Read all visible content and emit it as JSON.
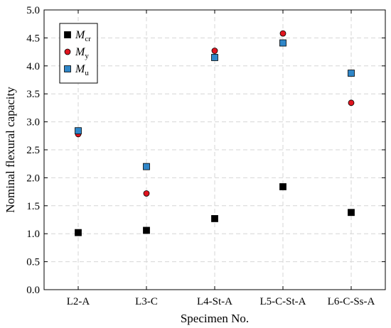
{
  "chart_data": {
    "type": "scatter",
    "xlabel": "Specimen No.",
    "ylabel": "Nominal flexural capacity",
    "categories": [
      "L2-A",
      "L3-C",
      "L4-St-A",
      "L5-C-St-A",
      "L6-C-Ss-A"
    ],
    "ylim": [
      0,
      5
    ],
    "yticks": [
      "0.0",
      "0.5",
      "1.0",
      "1.5",
      "2.0",
      "2.5",
      "3.0",
      "3.5",
      "4.0",
      "4.5",
      "5.0"
    ],
    "grid": true,
    "legend_position": "top-left",
    "series": [
      {
        "name": "M",
        "subscript": "cr",
        "marker": "square",
        "color": "#000000",
        "values": [
          1.02,
          1.06,
          1.27,
          1.84,
          1.38
        ]
      },
      {
        "name": "M",
        "subscript": "y",
        "marker": "circle",
        "color": "#e0141e",
        "values": [
          2.78,
          1.72,
          4.27,
          4.58,
          3.34
        ]
      },
      {
        "name": "M",
        "subscript": "u",
        "marker": "square",
        "color": "#2f86c8",
        "values": [
          2.84,
          2.2,
          4.15,
          4.41,
          3.87
        ]
      }
    ]
  }
}
